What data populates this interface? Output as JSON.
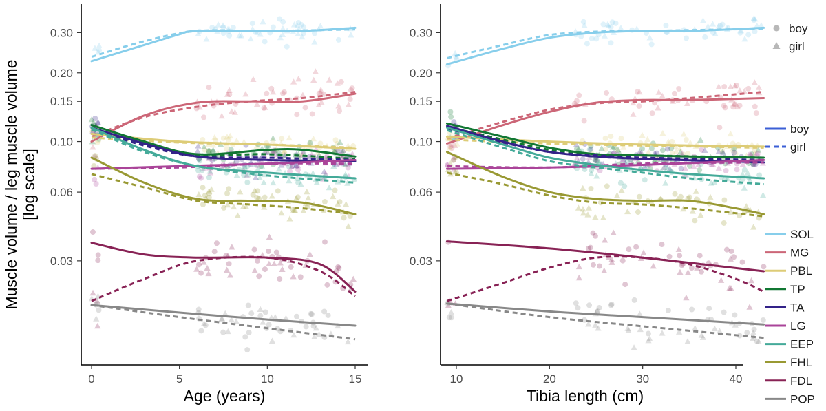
{
  "chart_data": {
    "type": "scatter",
    "ylabel_line1": "Muscle volume / leg muscle volume",
    "ylabel_line2": "[log scale]",
    "yscale": "log",
    "ylim": [
      0.0105,
      0.4
    ],
    "yticks": [
      0.03,
      0.06,
      0.1,
      0.15,
      0.2,
      0.3
    ],
    "ytick_labels": [
      "0.03",
      "0.06",
      "0.10",
      "0.15",
      "0.20",
      "0.30"
    ],
    "panels": [
      {
        "id": "age",
        "xlabel": "Age (years)",
        "xlim": [
          -0.5,
          15.5
        ],
        "xticks": [
          0,
          5,
          10,
          15
        ],
        "xtick_labels": [
          "0",
          "5",
          "10",
          "15"
        ],
        "series": [
          {
            "name": "SOL",
            "boy_x": [
              0,
              3,
              5,
              6,
              10,
              12,
              15
            ],
            "boy_y": [
              0.225,
              0.265,
              0.295,
              0.305,
              0.305,
              0.305,
              0.315
            ],
            "girl_x": [
              0,
              3,
              6,
              10,
              15
            ],
            "girl_y": [
              0.235,
              0.275,
              0.305,
              0.305,
              0.31
            ],
            "spread": 0.06
          },
          {
            "name": "MG",
            "boy_x": [
              0,
              3,
              6,
              9,
              12,
              15
            ],
            "boy_y": [
              0.1,
              0.13,
              0.148,
              0.15,
              0.15,
              0.162
            ],
            "girl_x": [
              0,
              3,
              6,
              9,
              12,
              15
            ],
            "girl_y": [
              0.105,
              0.128,
              0.142,
              0.15,
              0.155,
              0.165
            ],
            "spread": 0.1
          },
          {
            "name": "PBL",
            "boy_x": [
              0,
              5,
              10,
              15
            ],
            "boy_y": [
              0.108,
              0.1,
              0.097,
              0.093
            ],
            "girl_x": [
              0,
              5,
              10,
              15
            ],
            "girl_y": [
              0.104,
              0.099,
              0.097,
              0.094
            ],
            "spread": 0.07
          },
          {
            "name": "TP",
            "boy_x": [
              0,
              3,
              6,
              10,
              12,
              15
            ],
            "boy_y": [
              0.118,
              0.1,
              0.088,
              0.092,
              0.092,
              0.086
            ],
            "girl_x": [
              0,
              3,
              6,
              10,
              15
            ],
            "girl_y": [
              0.115,
              0.098,
              0.087,
              0.088,
              0.084
            ],
            "spread": 0.07
          },
          {
            "name": "TA",
            "boy_x": [
              0,
              3,
              6,
              10,
              15
            ],
            "boy_y": [
              0.115,
              0.098,
              0.086,
              0.083,
              0.082
            ],
            "girl_x": [
              0,
              3,
              6,
              10,
              15
            ],
            "girl_y": [
              0.113,
              0.096,
              0.086,
              0.085,
              0.083
            ],
            "spread": 0.06
          },
          {
            "name": "LG",
            "boy_x": [
              0,
              5,
              10,
              15
            ],
            "boy_y": [
              0.076,
              0.078,
              0.08,
              0.083
            ],
            "girl_x": [
              0,
              5,
              10,
              15
            ],
            "girl_y": [
              0.076,
              0.077,
              0.08,
              0.08
            ],
            "spread": 0.06
          },
          {
            "name": "EEP",
            "boy_x": [
              0,
              3,
              6,
              10,
              15
            ],
            "boy_y": [
              0.115,
              0.092,
              0.078,
              0.073,
              0.069
            ],
            "girl_x": [
              0,
              3,
              6,
              10,
              15
            ],
            "girl_y": [
              0.113,
              0.09,
              0.078,
              0.071,
              0.066
            ],
            "spread": 0.07
          },
          {
            "name": "FHL",
            "boy_x": [
              0,
              3,
              6,
              9,
              12,
              15
            ],
            "boy_y": [
              0.085,
              0.066,
              0.056,
              0.055,
              0.054,
              0.048
            ],
            "girl_x": [
              0,
              3,
              6,
              9,
              12,
              15
            ],
            "girl_y": [
              0.072,
              0.063,
              0.055,
              0.053,
              0.051,
              0.048
            ],
            "spread": 0.08
          },
          {
            "name": "FDL",
            "boy_x": [
              0,
              3,
              6,
              10,
              13,
              15
            ],
            "boy_y": [
              0.036,
              0.032,
              0.031,
              0.031,
              0.029,
              0.022
            ],
            "girl_x": [
              0,
              3,
              6,
              10,
              13,
              15
            ],
            "girl_y": [
              0.02,
              0.025,
              0.03,
              0.031,
              0.027,
              0.021
            ],
            "spread": 0.11
          },
          {
            "name": "POP",
            "boy_x": [
              0,
              5,
              10,
              15
            ],
            "boy_y": [
              0.0192,
              0.0178,
              0.0166,
              0.0156
            ],
            "girl_x": [
              0,
              5,
              10,
              15
            ],
            "girl_y": [
              0.0192,
              0.017,
              0.0152,
              0.0136
            ],
            "spread": 0.08
          }
        ]
      },
      {
        "id": "tibia",
        "xlabel": "Tibia length (cm)",
        "xlim": [
          8,
          44
        ],
        "xticks": [
          10,
          20,
          30,
          40
        ],
        "xtick_labels": [
          "10",
          "20",
          "30",
          "40"
        ],
        "series": [
          {
            "name": "SOL",
            "boy_x": [
              9,
              15,
              20,
              25,
              30,
              35,
              43
            ],
            "boy_y": [
              0.218,
              0.255,
              0.285,
              0.3,
              0.305,
              0.305,
              0.315
            ],
            "girl_x": [
              9,
              15,
              20,
              25,
              30,
              43
            ],
            "girl_y": [
              0.232,
              0.265,
              0.293,
              0.303,
              0.305,
              0.312
            ],
            "spread": 0.06
          },
          {
            "name": "MG",
            "boy_x": [
              9,
              15,
              20,
              25,
              30,
              35,
              43
            ],
            "boy_y": [
              0.098,
              0.118,
              0.135,
              0.148,
              0.152,
              0.152,
              0.155
            ],
            "girl_x": [
              9,
              15,
              20,
              25,
              30,
              35,
              43
            ],
            "girl_y": [
              0.103,
              0.122,
              0.138,
              0.147,
              0.15,
              0.155,
              0.165
            ],
            "spread": 0.1
          },
          {
            "name": "PBL",
            "boy_x": [
              9,
              20,
              30,
              43
            ],
            "boy_y": [
              0.105,
              0.1,
              0.097,
              0.095
            ],
            "girl_x": [
              9,
              20,
              30,
              43
            ],
            "girl_y": [
              0.102,
              0.098,
              0.096,
              0.094
            ],
            "spread": 0.07
          },
          {
            "name": "TP",
            "boy_x": [
              9,
              15,
              20,
              25,
              30,
              35,
              43
            ],
            "boy_y": [
              0.12,
              0.105,
              0.094,
              0.088,
              0.087,
              0.086,
              0.085
            ],
            "girl_x": [
              9,
              15,
              20,
              25,
              30,
              43
            ],
            "girl_y": [
              0.116,
              0.102,
              0.092,
              0.088,
              0.087,
              0.085
            ],
            "spread": 0.07
          },
          {
            "name": "TA",
            "boy_x": [
              9,
              15,
              20,
              25,
              30,
              43
            ],
            "boy_y": [
              0.117,
              0.1,
              0.09,
              0.086,
              0.084,
              0.081
            ],
            "girl_x": [
              9,
              15,
              20,
              25,
              30,
              43
            ],
            "girl_y": [
              0.114,
              0.099,
              0.09,
              0.087,
              0.085,
              0.083
            ],
            "spread": 0.06
          },
          {
            "name": "LG",
            "boy_x": [
              9,
              20,
              30,
              43
            ],
            "boy_y": [
              0.076,
              0.077,
              0.079,
              0.083
            ],
            "girl_x": [
              9,
              20,
              30,
              43
            ],
            "girl_y": [
              0.078,
              0.077,
              0.08,
              0.081
            ],
            "spread": 0.06
          },
          {
            "name": "EEP",
            "boy_x": [
              9,
              15,
              20,
              25,
              30,
              35,
              43
            ],
            "boy_y": [
              0.115,
              0.097,
              0.085,
              0.079,
              0.075,
              0.072,
              0.069
            ],
            "girl_x": [
              9,
              15,
              20,
              25,
              30,
              35,
              43
            ],
            "girl_y": [
              0.112,
              0.094,
              0.082,
              0.077,
              0.073,
              0.069,
              0.065
            ],
            "spread": 0.07
          },
          {
            "name": "FHL",
            "boy_x": [
              9,
              15,
              20,
              25,
              30,
              35,
              40,
              43
            ],
            "boy_y": [
              0.09,
              0.07,
              0.06,
              0.056,
              0.055,
              0.055,
              0.051,
              0.048
            ],
            "girl_x": [
              9,
              15,
              20,
              25,
              30,
              35,
              43
            ],
            "girl_y": [
              0.073,
              0.065,
              0.058,
              0.054,
              0.053,
              0.051,
              0.047
            ],
            "spread": 0.08
          },
          {
            "name": "FDL",
            "boy_x": [
              9,
              20,
              30,
              43
            ],
            "boy_y": [
              0.0365,
              0.034,
              0.031,
              0.027
            ],
            "girl_x": [
              9,
              15,
              20,
              25,
              30,
              35,
              40,
              43
            ],
            "girl_y": [
              0.02,
              0.024,
              0.028,
              0.031,
              0.031,
              0.029,
              0.025,
              0.022
            ],
            "spread": 0.11
          },
          {
            "name": "POP",
            "boy_x": [
              9,
              20,
              30,
              43
            ],
            "boy_y": [
              0.0195,
              0.018,
              0.017,
              0.0158
            ],
            "girl_x": [
              9,
              20,
              30,
              43
            ],
            "girl_y": [
              0.0195,
              0.017,
              0.0155,
              0.0138
            ],
            "spread": 0.08
          }
        ]
      }
    ],
    "legend": {
      "shape_title_items": [
        {
          "label": "boy",
          "marker": "circle"
        },
        {
          "label": "girl",
          "marker": "triangle"
        }
      ],
      "linetype_items": [
        {
          "label": "boy",
          "dash": "solid"
        },
        {
          "label": "girl",
          "dash": "dashed"
        }
      ],
      "linetype_color": "#3b5fd6",
      "muscles": [
        "SOL",
        "MG",
        "PBL",
        "TP",
        "TA",
        "LG",
        "EEP",
        "FHL",
        "FDL",
        "POP"
      ]
    },
    "colors": {
      "SOL": "#87ceeb",
      "MG": "#cc6677",
      "PBL": "#ddcc77",
      "TP": "#117733",
      "TA": "#332288",
      "LG": "#aa4499",
      "EEP": "#44aa99",
      "FHL": "#999933",
      "FDL": "#882255",
      "POP": "#888888"
    }
  }
}
